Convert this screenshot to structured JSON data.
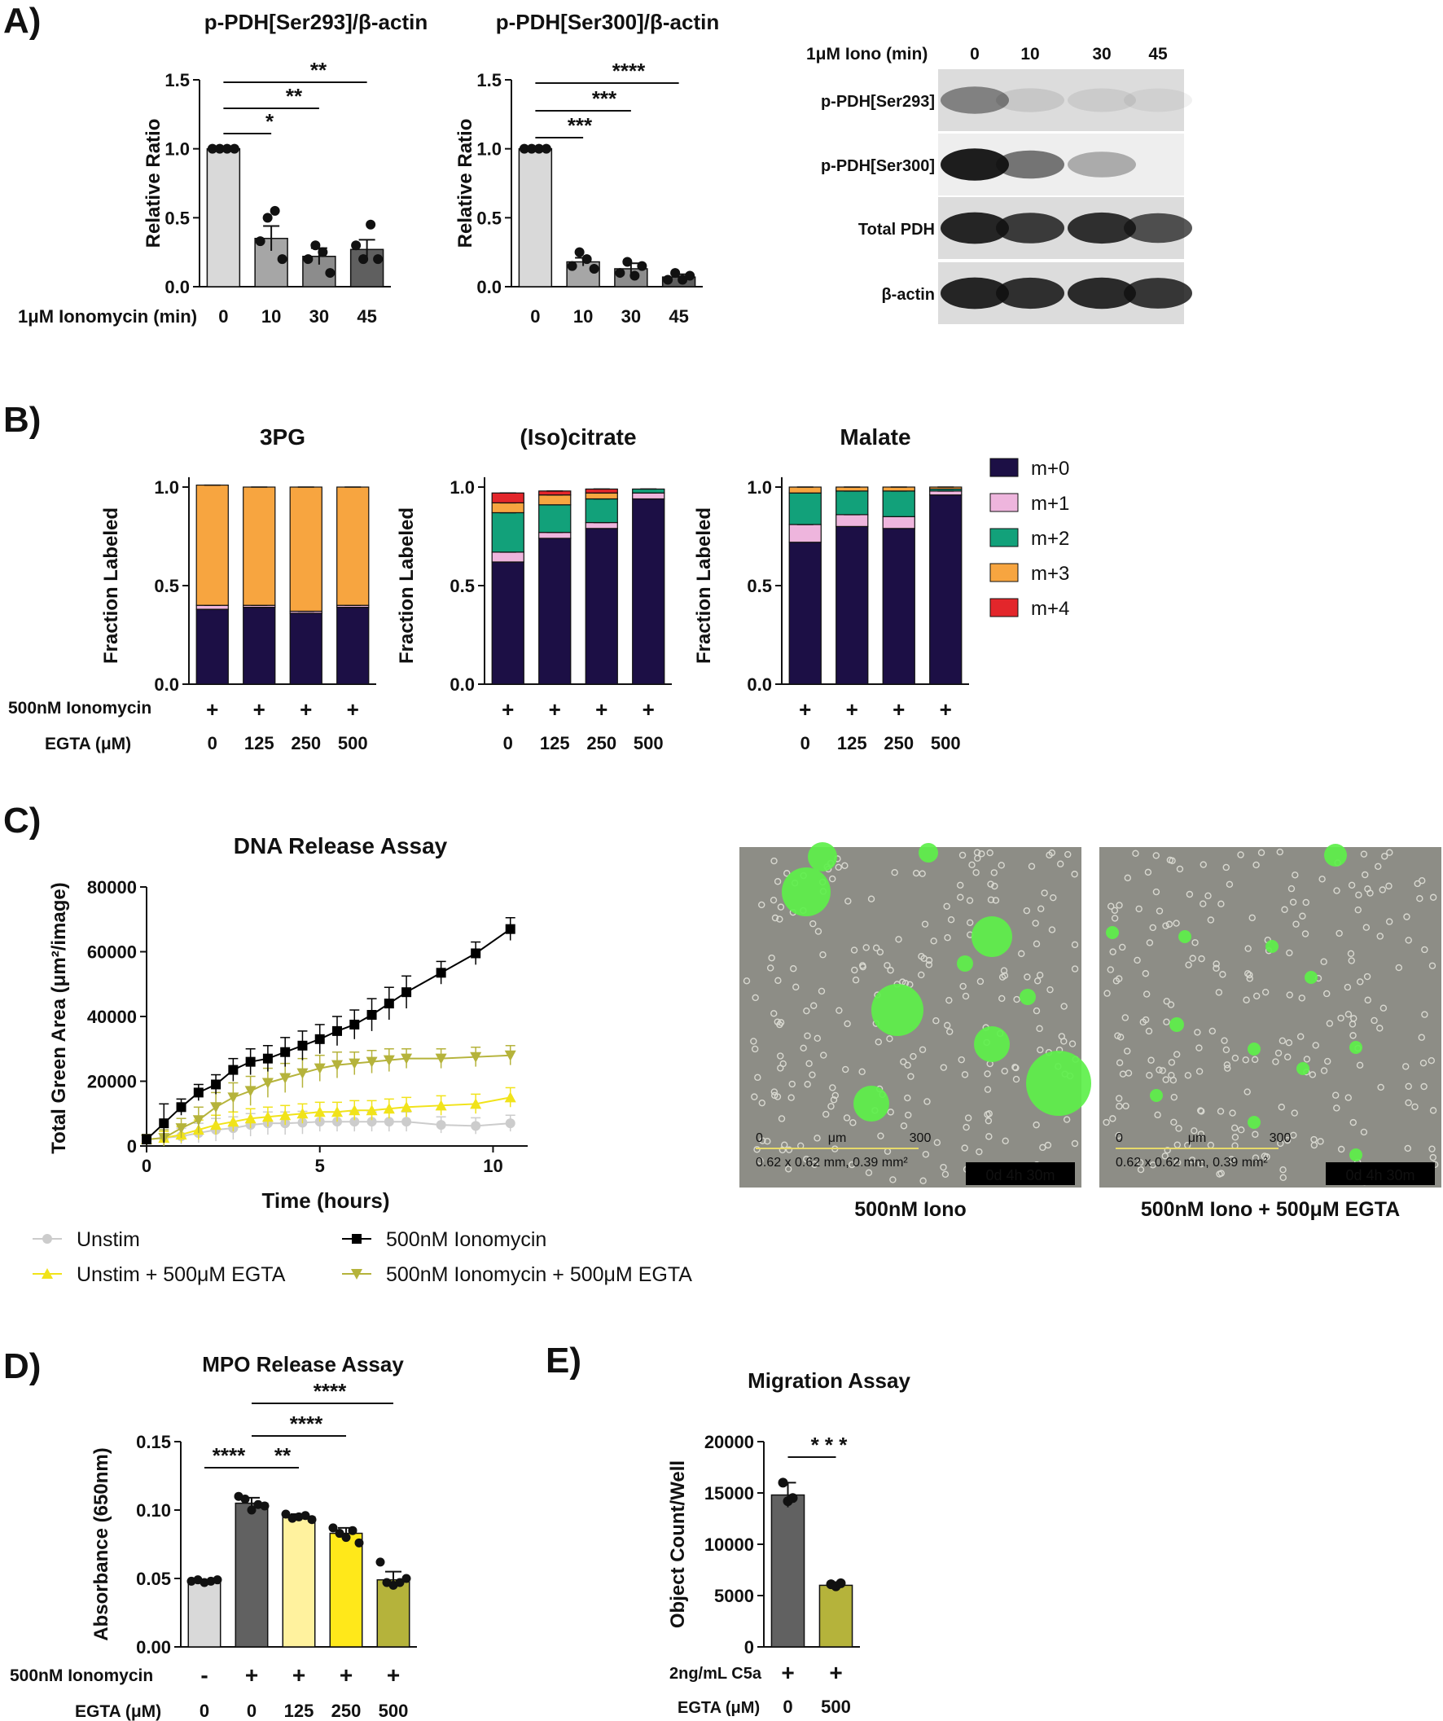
{
  "panels": {
    "A": "A)",
    "B": "B)",
    "C": "C)",
    "D": "D)",
    "E": "E)"
  },
  "panelA": {
    "x_prefix": "1μM  Ionomycin (min)",
    "charts": [
      {
        "title": "p-PDH[Ser293]/β-actin",
        "ylabel": "Relative Ratio",
        "categories": [
          "0",
          "10",
          "30",
          "45"
        ],
        "values": [
          1.0,
          0.35,
          0.22,
          0.27
        ],
        "errors": [
          0,
          0.09,
          0.06,
          0.07
        ],
        "colors": [
          "#d9d9d9",
          "#a6a6a6",
          "#8c8c8c",
          "#5f5f5f"
        ],
        "ylim": [
          0,
          1.5
        ],
        "yticks": [
          "0.0",
          "0.5",
          "1.0",
          "1.5"
        ],
        "points": [
          [
            1,
            1,
            1,
            1
          ],
          [
            0.33,
            0.5,
            0.55,
            0.2
          ],
          [
            0.2,
            0.3,
            0.25,
            0.1
          ],
          [
            0.3,
            0.2,
            0.45,
            0.2
          ]
        ],
        "sig": [
          {
            "from": 0,
            "to": 1,
            "label": "*"
          },
          {
            "from": 0,
            "to": 2,
            "label": "**"
          },
          {
            "from": 0,
            "to": 3,
            "label": "**"
          }
        ]
      },
      {
        "title": "p-PDH[Ser300]/β-actin",
        "ylabel": "Relative Ratio",
        "categories": [
          "0",
          "10",
          "30",
          "45"
        ],
        "values": [
          1.0,
          0.18,
          0.13,
          0.07
        ],
        "errors": [
          0,
          0.03,
          0.04,
          0.02
        ],
        "colors": [
          "#d9d9d9",
          "#a6a6a6",
          "#8c8c8c",
          "#5f5f5f"
        ],
        "ylim": [
          0,
          1.5
        ],
        "yticks": [
          "0.0",
          "0.5",
          "1.0",
          "1.5"
        ],
        "points": [
          [
            1,
            1,
            1,
            1
          ],
          [
            0.15,
            0.25,
            0.2,
            0.13
          ],
          [
            0.1,
            0.18,
            0.08,
            0.15
          ],
          [
            0.05,
            0.1,
            0.05,
            0.08
          ]
        ],
        "sig": [
          {
            "from": 0,
            "to": 1,
            "label": "***"
          },
          {
            "from": 0,
            "to": 2,
            "label": "***"
          },
          {
            "from": 0,
            "to": 3,
            "label": "****"
          }
        ]
      }
    ],
    "blot": {
      "header": "1μM  Iono (min)",
      "lanes": [
        "0",
        "10",
        "30",
        "45"
      ],
      "rows": [
        "p-PDH[Ser293]",
        "p-PDH[Ser300]",
        "Total PDH",
        "β-actin"
      ]
    }
  },
  "panelB": {
    "ylabel": "Fraction Labeled",
    "row1_label": "500nM  Ionomycin",
    "row2_label": "EGTA (μM)",
    "row1": [
      "+",
      "+",
      "+",
      "+"
    ],
    "row2": [
      "0",
      "125",
      "250",
      "500"
    ],
    "yticks": [
      "0.0",
      "0.5",
      "1.0"
    ],
    "legend": [
      {
        "label": "m+0",
        "color": "#1c0f45"
      },
      {
        "label": "m+1",
        "color": "#eeb5dd"
      },
      {
        "label": "m+2",
        "color": "#12a17a"
      },
      {
        "label": "m+3",
        "color": "#f7a540"
      },
      {
        "label": "m+4",
        "color": "#e3262b"
      }
    ],
    "chart_data": [
      {
        "type": "bar",
        "title": "3PG",
        "stacks": [
          [
            0.38,
            0.02,
            0,
            0.61,
            0
          ],
          [
            0.39,
            0.01,
            0,
            0.6,
            0
          ],
          [
            0.36,
            0.01,
            0,
            0.63,
            0
          ],
          [
            0.39,
            0.01,
            0,
            0.6,
            0
          ]
        ]
      },
      {
        "type": "bar",
        "title": "(Iso)citrate",
        "stacks": [
          [
            0.62,
            0.05,
            0.2,
            0.05,
            0.05
          ],
          [
            0.74,
            0.03,
            0.14,
            0.05,
            0.02
          ],
          [
            0.79,
            0.03,
            0.12,
            0.03,
            0.02
          ],
          [
            0.94,
            0.03,
            0.02,
            0.0,
            0.0
          ]
        ]
      },
      {
        "type": "bar",
        "title": "Malate",
        "stacks": [
          [
            0.72,
            0.09,
            0.16,
            0.03,
            0
          ],
          [
            0.8,
            0.06,
            0.12,
            0.02,
            0
          ],
          [
            0.79,
            0.06,
            0.13,
            0.02,
            0
          ],
          [
            0.96,
            0.02,
            0.01,
            0.01,
            0
          ]
        ]
      }
    ]
  },
  "panelC": {
    "chart_data": {
      "type": "line",
      "title": "DNA Release  Assay",
      "xlabel": "Time (hours)",
      "ylabel": "Total Green  Area (μm²/image)",
      "xticks": [
        "0",
        "5",
        "10"
      ],
      "yticks": [
        "0",
        "20000",
        "40000",
        "60000",
        "80000"
      ],
      "ylim": [
        0,
        80000
      ],
      "xlim": [
        0,
        11
      ],
      "x": [
        0,
        0.5,
        1,
        1.5,
        2,
        2.5,
        3,
        3.5,
        4,
        4.5,
        5,
        5.5,
        6,
        6.5,
        7,
        7.5,
        8.5,
        9.5,
        10.5
      ],
      "series": [
        {
          "name": "Unstim",
          "color": "#cccccc",
          "marker": "circle",
          "values": [
            2000,
            2500,
            3000,
            4000,
            5000,
            5500,
            6500,
            7000,
            7000,
            7200,
            7500,
            7500,
            7500,
            7500,
            7500,
            7500,
            6500,
            6200,
            7000
          ],
          "errors": [
            1500,
            2000,
            2500,
            3000,
            3500,
            3500,
            3500,
            3500,
            3500,
            3500,
            3000,
            3000,
            3000,
            3000,
            3000,
            3000,
            2500,
            2500,
            2500
          ]
        },
        {
          "name": "Unstim + 500μM EGTA",
          "color": "#f1e31a",
          "marker": "triangle-up",
          "values": [
            2000,
            2500,
            3500,
            5000,
            6500,
            7500,
            8500,
            9000,
            9500,
            10000,
            10500,
            10500,
            11000,
            11000,
            11500,
            12000,
            12500,
            13000,
            15000
          ],
          "errors": [
            1500,
            2000,
            2500,
            3000,
            3000,
            3000,
            3000,
            3000,
            3000,
            3000,
            3000,
            3000,
            3000,
            3000,
            3000,
            3000,
            3000,
            3000,
            3000
          ]
        },
        {
          "name": "500nM Ionomycin",
          "color": "#000000",
          "marker": "square",
          "values": [
            2000,
            7000,
            12000,
            16500,
            19000,
            23500,
            26000,
            27000,
            29000,
            31000,
            33000,
            35500,
            37500,
            40500,
            44000,
            47500,
            53500,
            59500,
            67000
          ],
          "errors": [
            1500,
            6000,
            2500,
            2500,
            3000,
            3500,
            4000,
            4000,
            4500,
            4500,
            4500,
            4500,
            4500,
            5000,
            5000,
            5000,
            3500,
            3500,
            3500
          ]
        },
        {
          "name": "500nM Ionomycin + 500μM EGTA",
          "color": "#b5b33b",
          "marker": "triangle-down",
          "values": [
            2000,
            2500,
            5500,
            8000,
            12000,
            15000,
            17000,
            19500,
            21000,
            22500,
            24000,
            25000,
            25500,
            26000,
            26500,
            27000,
            27000,
            27500,
            28000
          ],
          "errors": [
            1500,
            2500,
            3000,
            4000,
            4500,
            4500,
            4500,
            4500,
            4500,
            4500,
            4000,
            4000,
            3500,
            3500,
            3500,
            3000,
            3000,
            3000,
            3000
          ]
        }
      ]
    },
    "images": [
      {
        "caption": "500nM Iono",
        "scale_zero": "0",
        "scale_unit": "μm",
        "scale_max": "300",
        "dims": "0.62 x 0.62 mm, 0.39 mm²",
        "time": "0d 4h 30m"
      },
      {
        "caption": "500nM Iono + 500μM EGTA",
        "scale_zero": "0",
        "scale_unit": "μm",
        "scale_max": "300",
        "dims": "0.62 x 0.62 mm, 0.39 mm²",
        "time": "0d 4h 30m"
      }
    ]
  },
  "panelD": {
    "chart_data": {
      "type": "bar",
      "title": "MPO Release  Assay",
      "ylabel": "Absorbance (650nm)",
      "categories": [
        "0",
        "0",
        "125",
        "250",
        "500"
      ],
      "values": [
        0.048,
        0.105,
        0.095,
        0.083,
        0.049
      ],
      "errors": [
        0.001,
        0.004,
        0.002,
        0.004,
        0.006
      ],
      "colors": [
        "#d9d9d9",
        "#616161",
        "#fff29e",
        "#ffe81a",
        "#b5b33b"
      ],
      "ylim": [
        0,
        0.15
      ],
      "yticks": [
        "0.00",
        "0.05",
        "0.10",
        "0.15"
      ],
      "points": [
        [
          0.048,
          0.049,
          0.047,
          0.048,
          0.049
        ],
        [
          0.11,
          0.108,
          0.1,
          0.104,
          0.103
        ],
        [
          0.097,
          0.094,
          0.095,
          0.096,
          0.093
        ],
        [
          0.087,
          0.083,
          0.08,
          0.085,
          0.076
        ],
        [
          0.062,
          0.047,
          0.045,
          0.047,
          0.05
        ]
      ],
      "sig": [
        {
          "from": 0,
          "to": 1,
          "label": "****"
        },
        {
          "from": 1,
          "to": 2,
          "label": "**"
        },
        {
          "from": 1,
          "to": 3,
          "label": "****"
        },
        {
          "from": 1,
          "to": 4,
          "label": "****"
        }
      ]
    },
    "row1_label": "500nM Ionomycin",
    "row1": [
      "-",
      "+",
      "+",
      "+",
      "+"
    ],
    "row2_label": "EGTA (μM)"
  },
  "panelE": {
    "chart_data": {
      "type": "bar",
      "title": "Migration Assay",
      "ylabel": "Object Count/Well",
      "categories": [
        "0",
        "500"
      ],
      "values": [
        14800,
        6000
      ],
      "errors": [
        1200,
        300
      ],
      "colors": [
        "#616161",
        "#b5b33b"
      ],
      "ylim": [
        0,
        20000
      ],
      "yticks": [
        "0",
        "5000",
        "10000",
        "15000",
        "20000"
      ],
      "points": [
        [
          16000,
          14200,
          14500
        ],
        [
          6100,
          5900,
          6200
        ]
      ],
      "sig": [
        {
          "from": 0,
          "to": 1,
          "label": "* * *"
        }
      ]
    },
    "row1_label": "2ng/mL C5a",
    "row1": [
      "+",
      "+"
    ],
    "row2_label": "EGTA (μM)"
  }
}
